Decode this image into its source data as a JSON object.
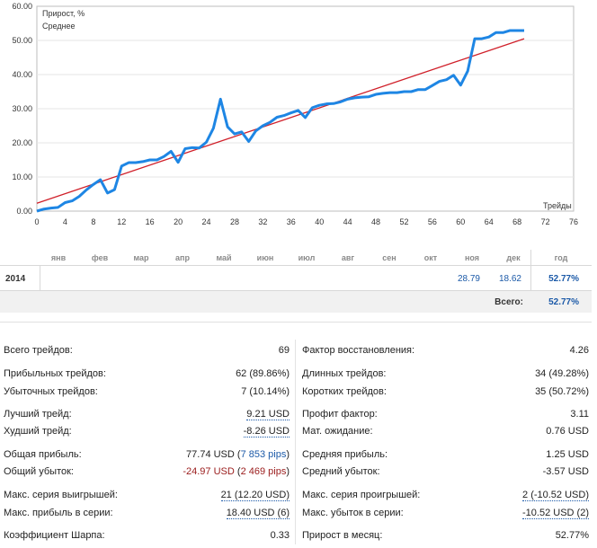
{
  "chart_data": {
    "type": "line",
    "legend": [
      "Прирост, %",
      "Среднее"
    ],
    "xlabel": "Трейды",
    "x_ticks": [
      0,
      4,
      8,
      12,
      16,
      20,
      24,
      28,
      32,
      36,
      40,
      44,
      48,
      52,
      56,
      60,
      64,
      68,
      72,
      76
    ],
    "y_ticks": [
      "0.00",
      "10.00",
      "20.00",
      "30.00",
      "40.00",
      "50.00",
      "60.00"
    ],
    "xlim": [
      0,
      76
    ],
    "ylim": [
      0,
      60
    ],
    "colors": {
      "growth": "#1e86e4",
      "average": "#d0202a"
    },
    "series": [
      {
        "name": "Прирост, %",
        "x": [
          0,
          1,
          2,
          3,
          4,
          5,
          6,
          7,
          8,
          9,
          10,
          11,
          12,
          13,
          14,
          15,
          16,
          17,
          18,
          19,
          20,
          21,
          22,
          23,
          24,
          25,
          26,
          27,
          28,
          29,
          30,
          31,
          32,
          33,
          34,
          35,
          36,
          37,
          38,
          39,
          40,
          41,
          42,
          43,
          44,
          45,
          46,
          47,
          48,
          49,
          50,
          51,
          52,
          53,
          54,
          55,
          56,
          57,
          58,
          59,
          60,
          61,
          62,
          63,
          64,
          65,
          66,
          67,
          68,
          69
        ],
        "values": [
          0.0,
          0.6,
          0.9,
          1.1,
          2.5,
          3.0,
          4.3,
          6.2,
          7.8,
          9.2,
          5.3,
          6.3,
          13.2,
          14.2,
          14.2,
          14.5,
          15.0,
          15.0,
          16.0,
          17.5,
          14.3,
          18.3,
          18.6,
          18.5,
          20.2,
          24.3,
          32.8,
          24.7,
          22.6,
          23.2,
          20.4,
          23.5,
          25.0,
          26.0,
          27.5,
          28.0,
          28.8,
          29.5,
          27.4,
          30.3,
          31.0,
          31.4,
          31.5,
          32.0,
          32.8,
          33.2,
          33.4,
          33.5,
          34.2,
          34.5,
          34.7,
          34.7,
          35.0,
          35.0,
          35.6,
          35.6,
          36.8,
          38.0,
          38.5,
          39.8,
          36.9,
          41.0,
          50.5,
          50.5,
          51.0,
          52.3,
          52.3,
          52.9,
          52.9,
          52.9
        ]
      },
      {
        "name": "Среднее",
        "x": [
          0,
          69
        ],
        "values": [
          2.3,
          50.5
        ]
      }
    ]
  },
  "monthly": {
    "months": [
      "янв",
      "фев",
      "мар",
      "апр",
      "май",
      "июн",
      "июл",
      "авг",
      "сен",
      "окт",
      "ноя",
      "дек"
    ],
    "year_header": "год",
    "year": "2014",
    "nov_value": "28.79",
    "dec_value": "18.62",
    "year_value": "52.77%",
    "total_label": "Всего:",
    "total_value": "52.77%"
  },
  "stats_left": {
    "total_trades_label": "Всего трейдов:",
    "total_trades": "69",
    "profit_trades_label": "Прибыльных трейдов:",
    "profit_trades": "62 (89.86%)",
    "loss_trades_label": "Убыточных трейдов:",
    "loss_trades": "7 (10.14%)",
    "best_trade_label": "Лучший трейд:",
    "best_trade": "9.21 USD",
    "worst_trade_label": "Худший трейд:",
    "worst_trade": "-8.26 USD",
    "gross_profit_label": "Общая прибыль:",
    "gross_profit_usd": "77.74 USD (",
    "gross_profit_pips": "7 853 pips",
    "gross_profit_close": ")",
    "gross_loss_label": "Общий убыток:",
    "gross_loss_usd": "-24.97 USD",
    "gross_loss_open": " (",
    "gross_loss_pips": "2 469 pips",
    "gross_loss_close": ")",
    "max_win_streak_label": "Макс. серия выигрышей:",
    "max_win_streak": "21 (12.20 USD)",
    "max_profit_streak_label": "Макс. прибыль в серии:",
    "max_profit_streak": "18.40 USD (6)",
    "sharpe_label": "Коэффициент Шарпа:",
    "sharpe": "0.33"
  },
  "stats_right": {
    "recovery_label": "Фактор восстановления:",
    "recovery": "4.26",
    "long_label": "Длинных трейдов:",
    "long": "34 (49.28%)",
    "short_label": "Коротких трейдов:",
    "short": "35 (50.72%)",
    "profit_factor_label": "Профит фактор:",
    "profit_factor": "3.11",
    "expectancy_label": "Мат. ожидание:",
    "expectancy": "0.76 USD",
    "avg_profit_label": "Средняя прибыль:",
    "avg_profit": "1.25 USD",
    "avg_loss_label": "Средний убыток:",
    "avg_loss": "-3.57 USD",
    "max_loss_streak_label": "Макс. серия проигрышей:",
    "max_loss_streak": "2 (-10.52 USD)",
    "max_loss_in_streak_label": "Макс. убыток в серии:",
    "max_loss_in_streak": "-10.52 USD (2)",
    "monthly_growth_label": "Прирост в месяц:",
    "monthly_growth": "52.77%"
  }
}
